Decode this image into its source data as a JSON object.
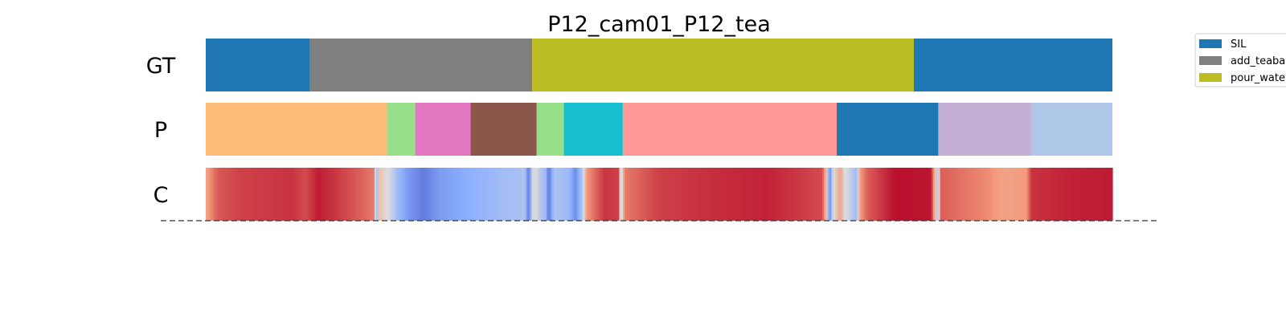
{
  "chart_data": {
    "type": "segmentation-timeline",
    "title": "P12_cam01_P12_tea",
    "x_range": [
      0,
      1000
    ],
    "rows": [
      {
        "label": "GT",
        "segments": [
          {
            "start": 0,
            "end": 115,
            "color": "#1f77b4"
          },
          {
            "start": 115,
            "end": 360,
            "color": "#7f7f7f"
          },
          {
            "start": 360,
            "end": 781,
            "color": "#bcbd22"
          },
          {
            "start": 781,
            "end": 1000,
            "color": "#1f77b4"
          }
        ]
      },
      {
        "label": "P",
        "segments": [
          {
            "start": 0,
            "end": 200,
            "color": "#ffbb78"
          },
          {
            "start": 200,
            "end": 231,
            "color": "#98df8a"
          },
          {
            "start": 231,
            "end": 292,
            "color": "#e377c2"
          },
          {
            "start": 292,
            "end": 365,
            "color": "#8c564b"
          },
          {
            "start": 365,
            "end": 395,
            "color": "#98df8a"
          },
          {
            "start": 395,
            "end": 460,
            "color": "#17becf"
          },
          {
            "start": 460,
            "end": 696,
            "color": "#ff9896"
          },
          {
            "start": 696,
            "end": 808,
            "color": "#1f77b4"
          },
          {
            "start": 808,
            "end": 911,
            "color": "#c5b0d5"
          },
          {
            "start": 911,
            "end": 1000,
            "color": "#aec7e8"
          }
        ]
      },
      {
        "label": "C",
        "colormap": "coolwarm",
        "confidence_profile": [
          [
            0,
            0.72
          ],
          [
            6,
            0.78
          ],
          [
            14,
            0.86
          ],
          [
            40,
            0.9
          ],
          [
            95,
            0.92
          ],
          [
            110,
            0.88
          ],
          [
            124,
            0.96
          ],
          [
            170,
            0.85
          ],
          [
            186,
            0.8
          ],
          [
            188,
            0.1
          ],
          [
            190,
            0.62
          ],
          [
            196,
            0.55
          ],
          [
            204,
            0.45
          ],
          [
            212,
            0.3
          ],
          [
            222,
            0.2
          ],
          [
            240,
            0.12
          ],
          [
            258,
            0.2
          ],
          [
            290,
            0.25
          ],
          [
            320,
            0.3
          ],
          [
            352,
            0.35
          ],
          [
            356,
            0.1
          ],
          [
            362,
            0.55
          ],
          [
            368,
            0.4
          ],
          [
            375,
            0.3
          ],
          [
            378,
            0.1
          ],
          [
            385,
            0.35
          ],
          [
            400,
            0.3
          ],
          [
            408,
            0.15
          ],
          [
            416,
            0.4
          ],
          [
            420,
            0.75
          ],
          [
            440,
            0.92
          ],
          [
            455,
            0.9
          ],
          [
            458,
            0.4
          ],
          [
            462,
            0.8
          ],
          [
            500,
            0.9
          ],
          [
            560,
            0.93
          ],
          [
            620,
            0.95
          ],
          [
            680,
            0.88
          ],
          [
            685,
            0.6
          ],
          [
            688,
            0.1
          ],
          [
            692,
            0.5
          ],
          [
            700,
            0.72
          ],
          [
            705,
            0.5
          ],
          [
            712,
            0.4
          ],
          [
            718,
            0.3
          ],
          [
            722,
            0.75
          ],
          [
            730,
            0.85
          ],
          [
            760,
            0.98
          ],
          [
            800,
            0.97
          ],
          [
            805,
            0.6
          ],
          [
            808,
            0.3
          ],
          [
            810,
            0.85
          ],
          [
            830,
            0.82
          ],
          [
            860,
            0.78
          ],
          [
            880,
            0.72
          ],
          [
            905,
            0.75
          ],
          [
            911,
            0.92
          ],
          [
            950,
            0.95
          ],
          [
            1000,
            0.96
          ]
        ]
      }
    ],
    "legend": {
      "placement": "upper-right",
      "entries": [
        {
          "label": "SIL",
          "color": "#1f77b4"
        },
        {
          "label": "add_teabag",
          "color": "#7f7f7f"
        },
        {
          "label": "pour_water",
          "color": "#bcbd22"
        }
      ]
    },
    "baseline": "dashed"
  }
}
